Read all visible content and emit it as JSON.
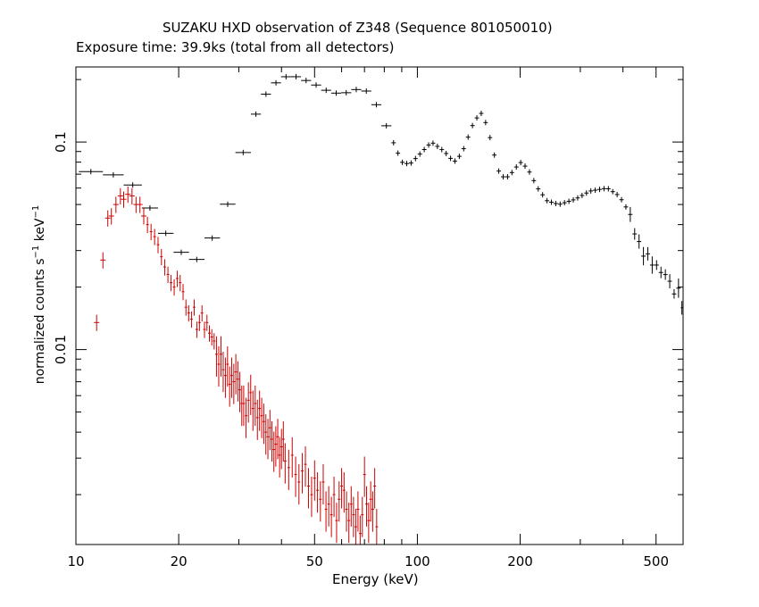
{
  "title": "SUZAKU HXD observation of Z348 (Sequence 801050010)",
  "subtitle": "Exposure time: 39.9ks (total from all detectors)",
  "ylabel_parts": [
    "normalized counts s",
    "−1",
    " keV",
    "−1"
  ],
  "chart_data": {
    "type": "scatter",
    "xscale": "log",
    "yscale": "log",
    "xlabel": "Energy (keV)",
    "ylabel": "normalized counts s^-1 keV^-1",
    "xlim": [
      10,
      600
    ],
    "ylim": [
      0.00115,
      0.23
    ],
    "xticks": [
      10,
      20,
      50,
      100,
      200,
      500
    ],
    "yticks": [
      0.01,
      0.1
    ],
    "xtick_labels": [
      "10",
      "20",
      "50",
      "100",
      "200",
      "500"
    ],
    "ytick_labels": [
      "0.01",
      "0.1"
    ],
    "colors": {
      "black_series": "#000000",
      "red_series": "#cc0000"
    },
    "black_anchors": [
      [
        10,
        0.072
      ],
      [
        11.5,
        0.072
      ],
      [
        12.5,
        0.071
      ],
      [
        14.5,
        0.064
      ],
      [
        17,
        0.045
      ],
      [
        19,
        0.033
      ],
      [
        21,
        0.028
      ],
      [
        23,
        0.027
      ],
      [
        25,
        0.034
      ],
      [
        27.5,
        0.046
      ],
      [
        29,
        0.065
      ],
      [
        31,
        0.09
      ],
      [
        33,
        0.125
      ],
      [
        35,
        0.16
      ],
      [
        38,
        0.19
      ],
      [
        42,
        0.21
      ],
      [
        45,
        0.205
      ],
      [
        50,
        0.19
      ],
      [
        55,
        0.175
      ],
      [
        60,
        0.17
      ],
      [
        67,
        0.18
      ],
      [
        72,
        0.175
      ],
      [
        78,
        0.14
      ],
      [
        85,
        0.1
      ],
      [
        90,
        0.08
      ],
      [
        95,
        0.078
      ],
      [
        100,
        0.085
      ],
      [
        110,
        0.1
      ],
      [
        120,
        0.09
      ],
      [
        128,
        0.08
      ],
      [
        135,
        0.088
      ],
      [
        145,
        0.12
      ],
      [
        153,
        0.14
      ],
      [
        160,
        0.12
      ],
      [
        167,
        0.09
      ],
      [
        175,
        0.068
      ],
      [
        185,
        0.068
      ],
      [
        200,
        0.08
      ],
      [
        210,
        0.075
      ],
      [
        225,
        0.06
      ],
      [
        240,
        0.052
      ],
      [
        260,
        0.05
      ],
      [
        290,
        0.053
      ],
      [
        320,
        0.058
      ],
      [
        360,
        0.06
      ],
      [
        390,
        0.055
      ],
      [
        420,
        0.045
      ],
      [
        450,
        0.032
      ],
      [
        500,
        0.025
      ],
      [
        550,
        0.021
      ],
      [
        600,
        0.017
      ]
    ],
    "red_points": [
      [
        11.5,
        0.0135
      ],
      [
        12,
        0.027
      ],
      [
        12.4,
        0.043
      ],
      [
        12.7,
        0.044
      ],
      [
        13.1,
        0.05
      ],
      [
        13.5,
        0.055
      ],
      [
        13.8,
        0.053
      ],
      [
        14.2,
        0.056
      ],
      [
        14.6,
        0.055
      ],
      [
        15,
        0.05
      ],
      [
        15.4,
        0.05
      ],
      [
        15.8,
        0.044
      ],
      [
        16.2,
        0.04
      ],
      [
        16.6,
        0.037
      ],
      [
        17,
        0.035
      ],
      [
        17.4,
        0.032
      ],
      [
        17.8,
        0.028
      ],
      [
        18.2,
        0.025
      ],
      [
        18.6,
        0.023
      ],
      [
        19,
        0.021
      ],
      [
        19.4,
        0.02
      ],
      [
        19.8,
        0.022
      ],
      [
        20.2,
        0.021
      ],
      [
        20.6,
        0.019
      ],
      [
        21,
        0.016
      ],
      [
        21.4,
        0.015
      ],
      [
        21.8,
        0.014
      ],
      [
        22.2,
        0.016
      ],
      [
        22.6,
        0.0125
      ],
      [
        23,
        0.0135
      ],
      [
        23.4,
        0.015
      ],
      [
        23.8,
        0.0125
      ],
      [
        24.2,
        0.0135
      ],
      [
        24.6,
        0.012
      ],
      [
        25,
        0.0115
      ],
      [
        25.4,
        0.011
      ],
      [
        25.8,
        0.0095
      ],
      [
        26.2,
        0.0085
      ],
      [
        26.6,
        0.0095
      ],
      [
        27,
        0.008
      ],
      [
        27.4,
        0.0075
      ],
      [
        27.8,
        0.0085
      ],
      [
        28.2,
        0.0068
      ],
      [
        28.6,
        0.0075
      ],
      [
        29,
        0.007
      ],
      [
        29.4,
        0.0078
      ],
      [
        29.8,
        0.0072
      ],
      [
        30.2,
        0.0064
      ],
      [
        30.6,
        0.0055
      ],
      [
        31,
        0.0055
      ],
      [
        31.5,
        0.0048
      ],
      [
        32,
        0.0057
      ],
      [
        32.5,
        0.0062
      ],
      [
        33,
        0.0052
      ],
      [
        33.5,
        0.0055
      ],
      [
        34,
        0.0047
      ],
      [
        34.5,
        0.0052
      ],
      [
        35,
        0.0048
      ],
      [
        35.5,
        0.0045
      ],
      [
        36,
        0.004
      ],
      [
        36.5,
        0.0038
      ],
      [
        37,
        0.0042
      ],
      [
        37.5,
        0.0037
      ],
      [
        38,
        0.0033
      ],
      [
        38.5,
        0.0035
      ],
      [
        39,
        0.0038
      ],
      [
        39.5,
        0.0031
      ],
      [
        40,
        0.0034
      ],
      [
        40.5,
        0.0037
      ],
      [
        41,
        0.0029
      ],
      [
        42,
        0.0027
      ],
      [
        43,
        0.0031
      ],
      [
        44,
        0.0025
      ],
      [
        45,
        0.0023
      ],
      [
        46,
        0.0026
      ],
      [
        47,
        0.0028
      ],
      [
        48,
        0.0022
      ],
      [
        49,
        0.002
      ],
      [
        50,
        0.0024
      ],
      [
        51,
        0.0021
      ],
      [
        52,
        0.0019
      ],
      [
        53,
        0.0023
      ],
      [
        54,
        0.0017
      ],
      [
        55,
        0.0018
      ],
      [
        56,
        0.0016
      ],
      [
        57,
        0.002
      ],
      [
        58,
        0.0015
      ],
      [
        59,
        0.0019
      ],
      [
        60,
        0.0022
      ],
      [
        61,
        0.0021
      ],
      [
        62,
        0.0017
      ],
      [
        63,
        0.0015
      ],
      [
        64,
        0.0018
      ],
      [
        65,
        0.0016
      ],
      [
        66,
        0.0014
      ],
      [
        67,
        0.0017
      ],
      [
        68,
        0.0013
      ],
      [
        69,
        0.0016
      ],
      [
        70,
        0.0025
      ],
      [
        71,
        0.0018
      ],
      [
        72,
        0.0015
      ],
      [
        73,
        0.0019
      ],
      [
        74,
        0.0017
      ],
      [
        75,
        0.0022
      ],
      [
        76,
        0.0014
      ]
    ]
  }
}
